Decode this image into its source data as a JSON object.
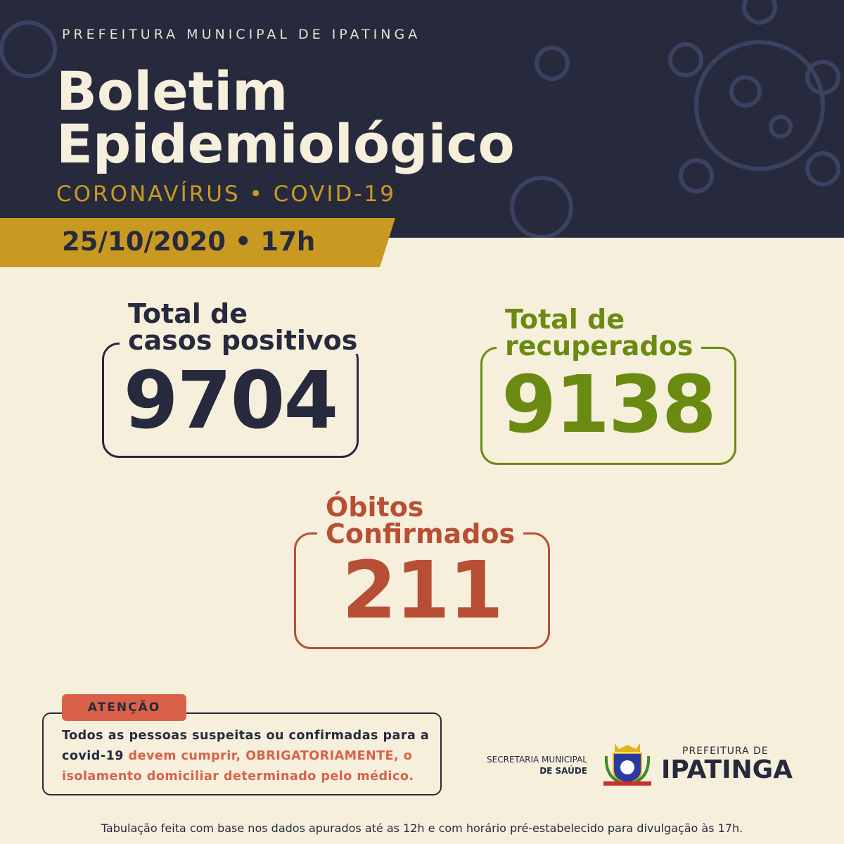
{
  "header": {
    "org": "PREFEITURA MUNICIPAL DE IPATINGA",
    "title": [
      "Boletim",
      "Epidemiológico"
    ],
    "subtitle": "CORONAVÍRUS • COVID-19",
    "date": "25/10/2020 • 17h"
  },
  "cards": [
    {
      "label": [
        "Total de",
        "casos positivos"
      ],
      "value": 9704
    },
    {
      "label": [
        "Total de",
        "recuperados"
      ],
      "value": 9138
    },
    {
      "label": [
        "Óbitos",
        "Confirmados"
      ],
      "value": 211
    }
  ],
  "attention": {
    "tag": "ATENÇÃO",
    "text": "Todos as pessoas suspeitas ou confirmadas para a covid-19",
    "highlight": "devem cumprir, OBRIGATORIAMENTE, o isolamento domiciliar determinado pelo médico."
  },
  "logos": {
    "secretaria": [
      "SECRETARIA MUNICIPAL",
      "DE SAÚDE"
    ],
    "prefeitura": [
      "PREFEITURA DE",
      "IPATINGA"
    ]
  },
  "footer": "Tabulação feita com base nos dados apurados até as 12h e com horário pré-estabelecido para divulgação às 17h."
}
